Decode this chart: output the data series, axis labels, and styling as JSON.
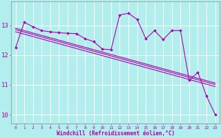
{
  "xlabel": "Windchill (Refroidissement éolien,°C)",
  "background_color": "#b2eeee",
  "line_color": "#aa00aa",
  "grid_color": "#ffffff",
  "xlim": [
    -0.5,
    23.5
  ],
  "ylim": [
    9.7,
    13.8
  ],
  "x": [
    0,
    1,
    2,
    3,
    4,
    5,
    6,
    7,
    8,
    9,
    10,
    11,
    12,
    13,
    14,
    15,
    16,
    17,
    18,
    19,
    20,
    21,
    22,
    23
  ],
  "y_main": [
    12.25,
    13.1,
    12.95,
    12.82,
    12.78,
    12.75,
    12.73,
    12.72,
    12.55,
    12.45,
    12.2,
    12.18,
    13.35,
    13.4,
    13.2,
    12.55,
    12.82,
    12.52,
    12.82,
    12.82,
    11.15,
    11.42,
    10.62,
    10.0
  ],
  "y_reg1": [
    12.9,
    12.82,
    12.74,
    12.66,
    12.58,
    12.5,
    12.42,
    12.34,
    12.26,
    12.18,
    12.1,
    12.02,
    11.94,
    11.86,
    11.78,
    11.7,
    11.62,
    11.54,
    11.46,
    11.38,
    11.3,
    11.22,
    11.14,
    11.06
  ],
  "y_reg2": [
    12.85,
    12.77,
    12.69,
    12.61,
    12.53,
    12.45,
    12.37,
    12.29,
    12.21,
    12.13,
    12.05,
    11.97,
    11.89,
    11.81,
    11.73,
    11.65,
    11.57,
    11.49,
    11.41,
    11.33,
    11.25,
    11.17,
    11.09,
    11.01
  ],
  "y_reg3": [
    12.78,
    12.7,
    12.62,
    12.54,
    12.46,
    12.38,
    12.3,
    12.22,
    12.14,
    12.06,
    11.98,
    11.9,
    11.82,
    11.74,
    11.66,
    11.58,
    11.5,
    11.42,
    11.34,
    11.26,
    11.18,
    11.1,
    11.02,
    10.94
  ]
}
